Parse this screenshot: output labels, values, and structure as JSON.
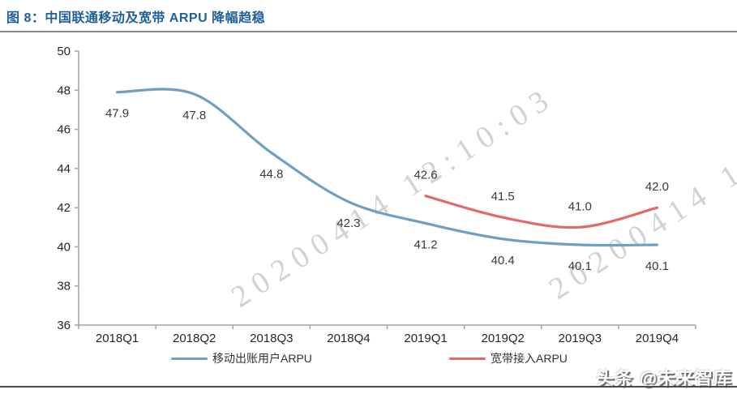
{
  "header": {
    "title": "图 8：中国联通移动及宽带 ARPU 降幅趋稳"
  },
  "watermark": {
    "text": "20200414 12:10:03"
  },
  "legend": {
    "items": [
      {
        "label": "移动出账用户ARPU",
        "color": "#6FA0C4"
      },
      {
        "label": "宽带接入ARPU",
        "color": "#E06A6A"
      }
    ]
  },
  "footer": {
    "logo_text": "头条 @未来智库"
  },
  "chart_data": {
    "type": "line",
    "title": "中国联通移动及宽带 ARPU 降幅趋稳",
    "categories": [
      "2018Q1",
      "2018Q2",
      "2018Q3",
      "2018Q4",
      "2019Q1",
      "2019Q2",
      "2019Q3",
      "2019Q4"
    ],
    "series": [
      {
        "name": "移动出账用户ARPU",
        "color": "#6FA0C4",
        "values": [
          47.9,
          47.8,
          44.8,
          42.3,
          41.2,
          40.4,
          40.1,
          40.1
        ],
        "label_position": "below"
      },
      {
        "name": "宽带接入ARPU",
        "color": "#E06A6A",
        "values": [
          null,
          null,
          null,
          null,
          42.6,
          41.5,
          41.0,
          42.0
        ],
        "label_position": "above"
      }
    ],
    "xlabel": "",
    "ylabel": "",
    "ylim": [
      36,
      50
    ],
    "yticks": [
      36,
      38,
      40,
      42,
      44,
      46,
      48,
      50
    ],
    "grid": false,
    "smooth": true,
    "legend_position": "bottom",
    "axis_color": "#A3A3A3",
    "tick_label_color": "#262626",
    "data_label_color": "#3A3A3A"
  }
}
